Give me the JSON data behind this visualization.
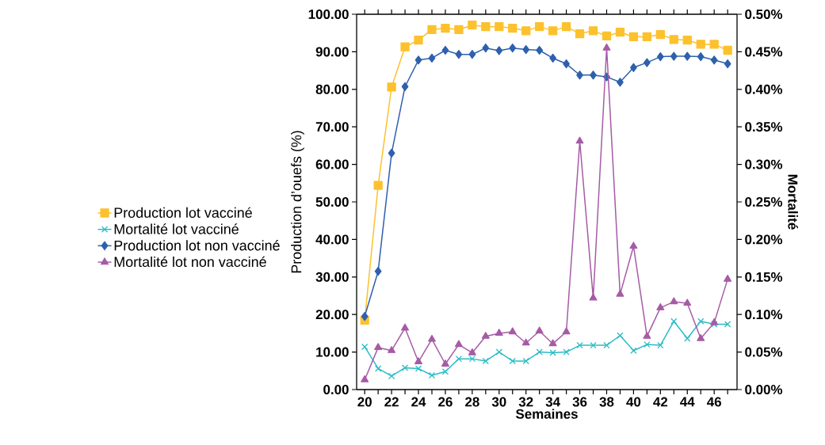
{
  "chart_data": {
    "type": "line",
    "xlabel": "Semaines",
    "ylabel": "Production d’ouefs (%)",
    "y2label": "Mortalité",
    "x": [
      20,
      21,
      22,
      23,
      24,
      25,
      26,
      27,
      28,
      29,
      30,
      31,
      32,
      33,
      34,
      35,
      36,
      37,
      38,
      39,
      40,
      41,
      42,
      43,
      44,
      45,
      46,
      47
    ],
    "series": [
      {
        "name": "Production lot vacciné",
        "color": "#fcc12d",
        "marker": "square",
        "values": [
          18.5,
          54.4,
          80.6,
          91.3,
          93.1,
          95.9,
          96.3,
          95.9,
          97.1,
          96.7,
          96.7,
          96.3,
          95.6,
          96.7,
          95.6,
          96.7,
          94.8,
          95.6,
          94.2,
          95.2,
          94.0,
          94.0,
          94.6,
          93.3,
          93.1,
          92.0,
          92.0,
          90.4
        ]
      },
      {
        "name": "Mortalité lot vacciné",
        "color": "#2bbcc6",
        "marker": "cross",
        "axis": "y2",
        "values": [
          0.057,
          0.028,
          0.018,
          0.029,
          0.028,
          0.019,
          0.024,
          0.041,
          0.041,
          0.038,
          0.05,
          0.038,
          0.038,
          0.05,
          0.049,
          0.05,
          0.059,
          0.059,
          0.059,
          0.072,
          0.052,
          0.06,
          0.059,
          0.091,
          0.068,
          0.091,
          0.087,
          0.087
        ]
      },
      {
        "name": "Production lot non vacciné",
        "color": "#2e60ad",
        "marker": "diamond",
        "values": [
          19.5,
          31.5,
          63.0,
          80.7,
          87.8,
          88.3,
          90.4,
          89.3,
          89.3,
          91.0,
          90.3,
          91.0,
          90.6,
          90.4,
          88.3,
          86.8,
          83.8,
          83.8,
          83.3,
          81.9,
          85.8,
          87.1,
          88.7,
          88.8,
          88.8,
          88.7,
          87.8,
          86.8
        ]
      },
      {
        "name": "Mortalité lot non vacciné",
        "color": "#a65ba6",
        "marker": "triangle",
        "axis": "y2",
        "values": [
          0.013,
          0.056,
          0.052,
          0.082,
          0.037,
          0.067,
          0.034,
          0.06,
          0.049,
          0.071,
          0.075,
          0.077,
          0.062,
          0.078,
          0.061,
          0.077,
          0.331,
          0.122,
          0.455,
          0.127,
          0.191,
          0.071,
          0.109,
          0.117,
          0.115,
          0.068,
          0.089,
          0.147
        ]
      }
    ],
    "xlim": [
      19.4,
      47.7
    ],
    "xticks": [
      20,
      {
        "value": 21,
        "label": null
      },
      22,
      {
        "value": 23,
        "label": null
      },
      24,
      {
        "value": 25,
        "label": null
      },
      26,
      {
        "value": 27,
        "label": null
      },
      28,
      {
        "value": 29,
        "label": null
      },
      30,
      {
        "value": 31,
        "label": null
      },
      32,
      {
        "value": 33,
        "label": null
      },
      34,
      {
        "value": 35,
        "label": null
      },
      36,
      {
        "value": 37,
        "label": null
      },
      38,
      {
        "value": 39,
        "label": null
      },
      40,
      {
        "value": 41,
        "label": null
      },
      42,
      {
        "value": 43,
        "label": null
      },
      44,
      {
        "value": 45,
        "label": null
      },
      46,
      {
        "value": 47,
        "label": null
      }
    ],
    "ylim": [
      0,
      100
    ],
    "yticks": [
      {
        "value": 0,
        "label": "0.00"
      },
      {
        "value": 10,
        "label": "10.00"
      },
      {
        "value": 20,
        "label": "20.00"
      },
      {
        "value": 30,
        "label": "30.00"
      },
      {
        "value": 40,
        "label": "40.00"
      },
      {
        "value": 50,
        "label": "50.00"
      },
      {
        "value": 60,
        "label": "60.00"
      },
      {
        "value": 70,
        "label": "70.00"
      },
      {
        "value": 80,
        "label": "80.00"
      },
      {
        "value": 90,
        "label": "90.00"
      },
      {
        "value": 100,
        "label": "100.00"
      }
    ],
    "y2lim": [
      0,
      0.5
    ],
    "y2ticks": [
      {
        "value": 0,
        "label": "0.00%"
      },
      {
        "value": 0.05,
        "label": "0.05%"
      },
      {
        "value": 0.1,
        "label": "0.10%"
      },
      {
        "value": 0.15,
        "label": "0.15%"
      },
      {
        "value": 0.2,
        "label": "0.20%"
      },
      {
        "value": 0.25,
        "label": "0.25%"
      },
      {
        "value": 0.3,
        "label": "0.30%"
      },
      {
        "value": 0.35,
        "label": "0.35%"
      },
      {
        "value": 0.4,
        "label": "0.40%"
      },
      {
        "value": 0.45,
        "label": "0.45%"
      },
      {
        "value": 0.5,
        "label": "0.50%"
      }
    ],
    "grid": false,
    "legend": "left",
    "line_style": "solid"
  }
}
